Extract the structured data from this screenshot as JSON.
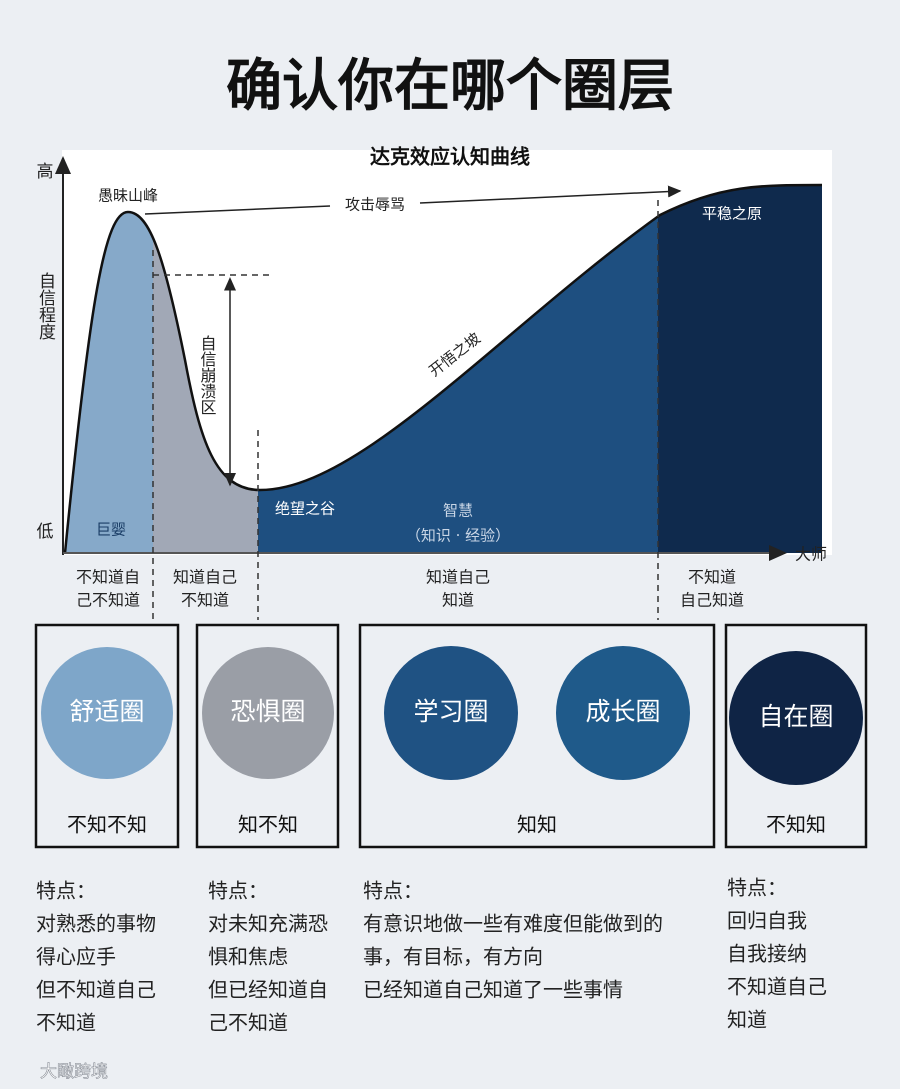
{
  "title": "确认你在哪个圈层",
  "chart": {
    "title": "达克效应认知曲线",
    "y_high": "高",
    "y_low": "低",
    "y_label": "自信程度",
    "x_end": "大师",
    "annotations": {
      "peak": "愚昧山峰",
      "attack": "攻击辱骂",
      "collapse": "自信崩溃区",
      "slope": "开悟之坡",
      "plateau": "平稳之原",
      "infant": "巨婴",
      "valley": "绝望之谷",
      "wisdom": "智慧",
      "wisdom_note": "（知识 · 经验）"
    },
    "stages": [
      [
        "不知道自",
        "己不知道"
      ],
      [
        "知道自己",
        "不知道"
      ],
      [
        "知道自己",
        "知道"
      ],
      [
        "不知道",
        "自己知道"
      ]
    ]
  },
  "circles": [
    {
      "names": [
        "舒适圈"
      ],
      "label": "不知不知"
    },
    {
      "names": [
        "恐惧圈"
      ],
      "label": "知不知"
    },
    {
      "names": [
        "学习圈",
        "成长圈"
      ],
      "label": "知知"
    },
    {
      "names": [
        "自在圈"
      ],
      "label": "不知知"
    }
  ],
  "features": [
    {
      "heading": "特点：",
      "lines": [
        "对熟悉的事物",
        "得心应手",
        "但不知道自己",
        "不知道"
      ]
    },
    {
      "heading": "特点：",
      "lines": [
        "对未知充满恐",
        "惧和焦虑",
        "但已经知道自",
        "己不知道"
      ]
    },
    {
      "heading": "特点：",
      "lines": [
        "有意识地做一些有难度但能做到的",
        "事，有目标，有方向",
        "已经知道自己知道了一些事情"
      ]
    },
    {
      "heading": "特点：",
      "lines": [
        "回归自我",
        "自我接纳",
        "不知道自己",
        "知道"
      ]
    }
  ],
  "watermark": "大瞰跨境"
}
